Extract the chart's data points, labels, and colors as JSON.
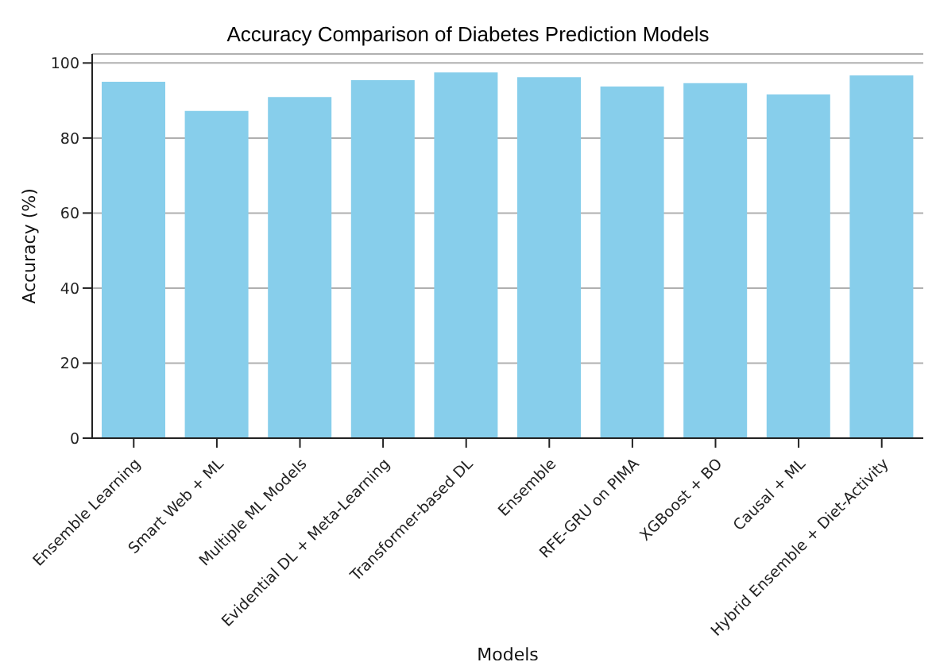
{
  "chart_data": {
    "type": "bar",
    "title": "Accuracy Comparison of Diabetes Prediction Models",
    "xlabel": "Models",
    "ylabel": "Accuracy (%)",
    "categories": [
      "Ensemble Learning",
      "Smart Web + ML",
      "Multiple ML Models",
      "Evidential DL + Meta-Learning",
      "Transformer-based DL",
      "Ensemble",
      "RFE-GRU on PIMA",
      "XGBoost + BO",
      "Causal + ML",
      "Hybrid Ensemble + Diet-Activity"
    ],
    "values": [
      95.0,
      87.2,
      90.9,
      95.4,
      97.5,
      96.2,
      93.7,
      94.6,
      91.6,
      96.7
    ],
    "color": "#87ceeb",
    "ylim": [
      0,
      102.4
    ],
    "yticks": [
      0,
      20,
      40,
      60,
      80,
      100
    ],
    "grid": "y"
  }
}
